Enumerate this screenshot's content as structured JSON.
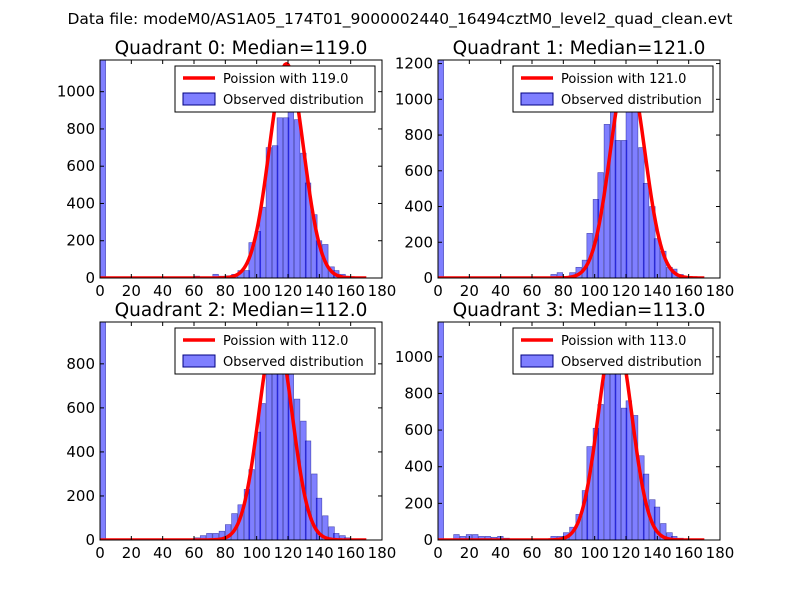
{
  "suptitle": "Data file: modeM0/AS1A05_174T01_9000002440_16494cztM0_level2_quad_clean.evt",
  "colors": {
    "curve": "#ff0000",
    "bars": "#0000ff",
    "bar_alpha": 0.5,
    "bar_edge": "#000080"
  },
  "chart_data": [
    {
      "type": "bar",
      "title": "Quadrant 0: Median=119.0",
      "xlim": [
        0,
        180
      ],
      "ylim": [
        0,
        1170
      ],
      "xticks": [
        "0",
        "20",
        "40",
        "60",
        "80",
        "100",
        "120",
        "140",
        "160",
        "180"
      ],
      "yticks": [
        "0",
        "200",
        "400",
        "600",
        "800",
        "1000"
      ],
      "ytick_values": [
        0,
        200,
        400,
        600,
        800,
        1000
      ],
      "legend": [
        "Poission with 119.0",
        "Observed distribution"
      ],
      "bin_width": 3.6,
      "bins": [
        [
          0,
          1170
        ],
        [
          60,
          10
        ],
        [
          64,
          5
        ],
        [
          68,
          4
        ],
        [
          72,
          20
        ],
        [
          76,
          10
        ],
        [
          80,
          12
        ],
        [
          84,
          20
        ],
        [
          88,
          40
        ],
        [
          92,
          40
        ],
        [
          95,
          190
        ],
        [
          99,
          250
        ],
        [
          102,
          380
        ],
        [
          106,
          700
        ],
        [
          110,
          710
        ],
        [
          113,
          860
        ],
        [
          117,
          860
        ],
        [
          120,
          1120
        ],
        [
          124,
          850
        ],
        [
          128,
          670
        ],
        [
          131,
          510
        ],
        [
          135,
          340
        ],
        [
          138,
          200
        ],
        [
          142,
          180
        ],
        [
          146,
          60
        ],
        [
          149,
          40
        ],
        [
          153,
          20
        ],
        [
          156,
          10
        ],
        [
          160,
          5
        ]
      ],
      "poisson": {
        "lambda": 119.0,
        "peak": 1150,
        "sigma": 10.9
      }
    },
    {
      "type": "bar",
      "title": "Quadrant 1: Median=121.0",
      "xlim": [
        0,
        180
      ],
      "ylim": [
        0,
        1220
      ],
      "xticks": [
        "0",
        "20",
        "40",
        "60",
        "80",
        "100",
        "120",
        "140",
        "160",
        "180"
      ],
      "yticks": [
        "0",
        "200",
        "400",
        "600",
        "800",
        "1000",
        "1200"
      ],
      "ytick_values": [
        0,
        200,
        400,
        600,
        800,
        1000,
        1200
      ],
      "legend": [
        "Poission with 121.0",
        "Observed distribution"
      ],
      "bin_width": 3.6,
      "bins": [
        [
          0,
          1220
        ],
        [
          72,
          20
        ],
        [
          76,
          30
        ],
        [
          84,
          30
        ],
        [
          88,
          60
        ],
        [
          92,
          100
        ],
        [
          95,
          250
        ],
        [
          99,
          440
        ],
        [
          102,
          590
        ],
        [
          106,
          860
        ],
        [
          110,
          1060
        ],
        [
          113,
          770
        ],
        [
          117,
          770
        ],
        [
          120,
          1120
        ],
        [
          124,
          990
        ],
        [
          128,
          730
        ],
        [
          131,
          530
        ],
        [
          135,
          400
        ],
        [
          138,
          220
        ],
        [
          142,
          150
        ],
        [
          146,
          60
        ],
        [
          149,
          50
        ],
        [
          153,
          20
        ],
        [
          156,
          10
        ]
      ],
      "poisson": {
        "lambda": 121.0,
        "peak": 1170,
        "sigma": 11.0
      }
    },
    {
      "type": "bar",
      "title": "Quadrant 2: Median=112.0",
      "xlim": [
        0,
        180
      ],
      "ylim": [
        0,
        990
      ],
      "xticks": [
        "0",
        "20",
        "40",
        "60",
        "80",
        "100",
        "120",
        "140",
        "160",
        "180"
      ],
      "yticks": [
        "0",
        "200",
        "400",
        "600",
        "800"
      ],
      "ytick_values": [
        0,
        200,
        400,
        600,
        800
      ],
      "legend": [
        "Poission with 112.0",
        "Observed distribution"
      ],
      "bin_width": 3.6,
      "bins": [
        [
          0,
          990
        ],
        [
          60,
          10
        ],
        [
          64,
          20
        ],
        [
          68,
          30
        ],
        [
          72,
          30
        ],
        [
          76,
          40
        ],
        [
          80,
          70
        ],
        [
          84,
          120
        ],
        [
          88,
          160
        ],
        [
          92,
          230
        ],
        [
          95,
          320
        ],
        [
          99,
          490
        ],
        [
          102,
          620
        ],
        [
          106,
          760
        ],
        [
          110,
          960
        ],
        [
          113,
          880
        ],
        [
          117,
          800
        ],
        [
          120,
          920
        ],
        [
          124,
          640
        ],
        [
          128,
          540
        ],
        [
          131,
          450
        ],
        [
          135,
          300
        ],
        [
          138,
          190
        ],
        [
          142,
          110
        ],
        [
          146,
          60
        ],
        [
          149,
          30
        ],
        [
          153,
          20
        ],
        [
          156,
          10
        ]
      ],
      "poisson": {
        "lambda": 112.0,
        "peak": 950,
        "sigma": 10.6
      }
    },
    {
      "type": "bar",
      "title": "Quadrant 3: Median=113.0",
      "xlim": [
        0,
        180
      ],
      "ylim": [
        0,
        1190
      ],
      "xticks": [
        "0",
        "20",
        "40",
        "60",
        "80",
        "100",
        "120",
        "140",
        "160",
        "180"
      ],
      "yticks": [
        "0",
        "200",
        "400",
        "600",
        "800",
        "1000"
      ],
      "ytick_values": [
        0,
        200,
        400,
        600,
        800,
        1000
      ],
      "legend": [
        "Poission with 113.0",
        "Observed distribution"
      ],
      "bin_width": 3.6,
      "bins": [
        [
          0,
          1190
        ],
        [
          10,
          30
        ],
        [
          14,
          20
        ],
        [
          18,
          30
        ],
        [
          22,
          30
        ],
        [
          26,
          20
        ],
        [
          30,
          20
        ],
        [
          34,
          15
        ],
        [
          38,
          20
        ],
        [
          42,
          10
        ],
        [
          72,
          20
        ],
        [
          76,
          20
        ],
        [
          80,
          40
        ],
        [
          84,
          70
        ],
        [
          88,
          140
        ],
        [
          92,
          270
        ],
        [
          95,
          510
        ],
        [
          99,
          610
        ],
        [
          102,
          740
        ],
        [
          106,
          1000
        ],
        [
          110,
          940
        ],
        [
          113,
          1060
        ],
        [
          117,
          720
        ],
        [
          120,
          760
        ],
        [
          124,
          680
        ],
        [
          128,
          460
        ],
        [
          131,
          360
        ],
        [
          135,
          220
        ],
        [
          138,
          180
        ],
        [
          142,
          90
        ],
        [
          146,
          40
        ],
        [
          149,
          20
        ],
        [
          153,
          10
        ]
      ],
      "poisson": {
        "lambda": 113.0,
        "peak": 1140,
        "sigma": 10.6
      }
    }
  ]
}
